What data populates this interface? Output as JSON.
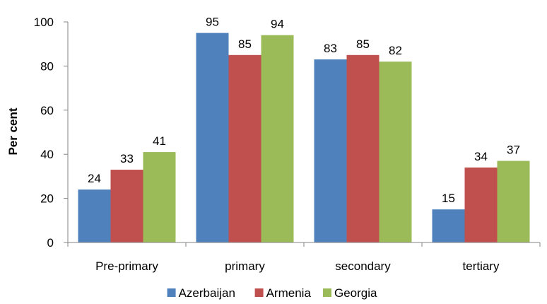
{
  "chart_data": {
    "type": "bar",
    "categories": [
      "Pre-primary",
      "primary",
      "secondary",
      "tertiary"
    ],
    "series": [
      {
        "name": "Azerbaijan",
        "values": [
          24,
          95,
          83,
          15
        ],
        "color": "#4F81BD"
      },
      {
        "name": "Armenia",
        "values": [
          33,
          85,
          85,
          34
        ],
        "color": "#C0504D"
      },
      {
        "name": "Georgia",
        "values": [
          41,
          94,
          82,
          37
        ],
        "color": "#9BBB59"
      }
    ],
    "title": "",
    "xlabel": "",
    "ylabel": "Per cent",
    "ylim": [
      0,
      100
    ],
    "yticks": [
      0,
      20,
      40,
      60,
      80,
      100
    ],
    "grid": false,
    "legend": "bottom",
    "data_labels": true
  }
}
